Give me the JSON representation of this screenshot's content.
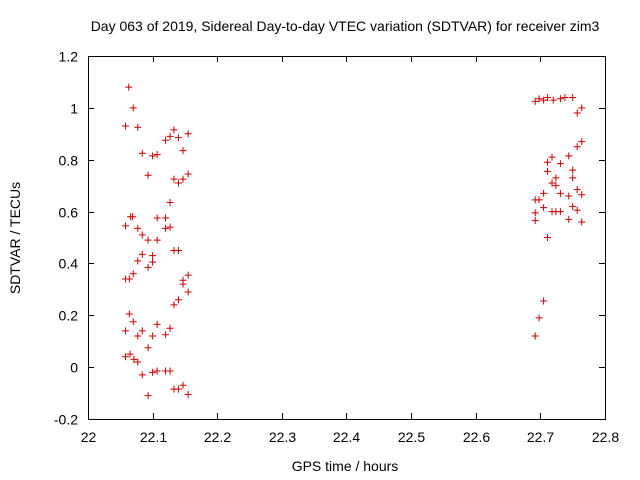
{
  "chart_data": {
    "type": "scatter",
    "title": "Day 063 of 2019, Sidereal Day-to-day VTEC variation (SDTVAR) for receiver zim3",
    "xlabel": "GPS time / hours",
    "ylabel": "SDTVAR / TECUs",
    "xlim": [
      22,
      22.8
    ],
    "ylim": [
      -0.2,
      1.2
    ],
    "xticks": [
      22,
      22.1,
      22.2,
      22.3,
      22.4,
      22.5,
      22.6,
      22.7,
      22.8
    ],
    "xtick_labels": [
      "22",
      "22.1",
      "22.2",
      "22.3",
      "22.4",
      "22.5",
      "22.6",
      "22.7",
      "22.8"
    ],
    "yticks": [
      -0.2,
      0,
      0.2,
      0.4,
      0.6,
      0.8,
      1,
      1.2
    ],
    "ytick_labels": [
      "-0.2",
      "0",
      "0.2",
      "0.4",
      "0.6",
      "0.8",
      "1",
      "1.2"
    ],
    "grid": false,
    "marker": "+",
    "color": "#cc0000",
    "series": [
      {
        "name": "SDTVAR",
        "points": [
          [
            22.058,
            0.93
          ],
          [
            22.058,
            0.545
          ],
          [
            22.058,
            0.34
          ],
          [
            22.058,
            0.14
          ],
          [
            22.058,
            0.04
          ],
          [
            22.063,
            1.08
          ],
          [
            22.064,
            0.34
          ],
          [
            22.064,
            0.205
          ],
          [
            22.065,
            0.05
          ],
          [
            22.066,
            0.58
          ],
          [
            22.069,
            0.58
          ],
          [
            22.07,
            1.0
          ],
          [
            22.07,
            0.36
          ],
          [
            22.07,
            0.175
          ],
          [
            22.071,
            0.03
          ],
          [
            22.077,
            0.925
          ],
          [
            22.077,
            0.535
          ],
          [
            22.077,
            0.41
          ],
          [
            22.077,
            0.12
          ],
          [
            22.077,
            0.02
          ],
          [
            22.084,
            0.825
          ],
          [
            22.084,
            0.51
          ],
          [
            22.084,
            0.435
          ],
          [
            22.084,
            0.14
          ],
          [
            22.084,
            -0.03
          ],
          [
            22.093,
            0.74
          ],
          [
            22.093,
            0.49
          ],
          [
            22.093,
            0.385
          ],
          [
            22.093,
            0.075
          ],
          [
            22.093,
            -0.11
          ],
          [
            22.1,
            0.815
          ],
          [
            22.1,
            0.43
          ],
          [
            22.1,
            0.405
          ],
          [
            22.1,
            0.12
          ],
          [
            22.1,
            -0.02
          ],
          [
            22.107,
            0.82
          ],
          [
            22.107,
            0.575
          ],
          [
            22.107,
            0.49
          ],
          [
            22.107,
            0.165
          ],
          [
            22.107,
            -0.015
          ],
          [
            22.12,
            0.875
          ],
          [
            22.12,
            0.575
          ],
          [
            22.12,
            0.535
          ],
          [
            22.12,
            0.125
          ],
          [
            22.12,
            -0.015
          ],
          [
            22.127,
            0.89
          ],
          [
            22.127,
            0.635
          ],
          [
            22.127,
            0.54
          ],
          [
            22.127,
            0.15
          ],
          [
            22.127,
            -0.015
          ],
          [
            22.133,
            0.915
          ],
          [
            22.133,
            0.725
          ],
          [
            22.133,
            0.45
          ],
          [
            22.133,
            0.24
          ],
          [
            22.133,
            -0.085
          ],
          [
            22.14,
            0.885
          ],
          [
            22.14,
            0.71
          ],
          [
            22.14,
            0.45
          ],
          [
            22.14,
            0.26
          ],
          [
            22.14,
            -0.085
          ],
          [
            22.147,
            0.835
          ],
          [
            22.147,
            0.725
          ],
          [
            22.147,
            0.335
          ],
          [
            22.147,
            0.32
          ],
          [
            22.147,
            -0.07
          ],
          [
            22.155,
            0.9
          ],
          [
            22.155,
            0.745
          ],
          [
            22.155,
            0.355
          ],
          [
            22.155,
            0.29
          ],
          [
            22.155,
            -0.105
          ],
          [
            22.692,
            1.025
          ],
          [
            22.692,
            0.645
          ],
          [
            22.692,
            0.595
          ],
          [
            22.692,
            0.565
          ],
          [
            22.692,
            0.12
          ],
          [
            22.698,
            1.035
          ],
          [
            22.698,
            0.645
          ],
          [
            22.698,
            0.19
          ],
          [
            22.705,
            1.03
          ],
          [
            22.705,
            0.67
          ],
          [
            22.705,
            0.615
          ],
          [
            22.705,
            0.255
          ],
          [
            22.711,
            1.04
          ],
          [
            22.711,
            0.79
          ],
          [
            22.711,
            0.755
          ],
          [
            22.711,
            0.5
          ],
          [
            22.718,
            0.81
          ],
          [
            22.718,
            0.71
          ],
          [
            22.718,
            0.6
          ],
          [
            22.72,
            1.03
          ],
          [
            22.724,
            0.73
          ],
          [
            22.724,
            0.7
          ],
          [
            22.724,
            0.6
          ],
          [
            22.731,
            1.035
          ],
          [
            22.731,
            0.785
          ],
          [
            22.731,
            0.67
          ],
          [
            22.731,
            0.6
          ],
          [
            22.738,
            1.04
          ],
          [
            22.744,
            0.815
          ],
          [
            22.744,
            0.66
          ],
          [
            22.744,
            0.57
          ],
          [
            22.75,
            1.04
          ],
          [
            22.75,
            0.76
          ],
          [
            22.75,
            0.73
          ],
          [
            22.75,
            0.62
          ],
          [
            22.757,
            0.98
          ],
          [
            22.757,
            0.85
          ],
          [
            22.757,
            0.685
          ],
          [
            22.757,
            0.605
          ],
          [
            22.764,
            1.0
          ],
          [
            22.764,
            0.87
          ],
          [
            22.764,
            0.665
          ],
          [
            22.764,
            0.56
          ]
        ]
      }
    ]
  }
}
